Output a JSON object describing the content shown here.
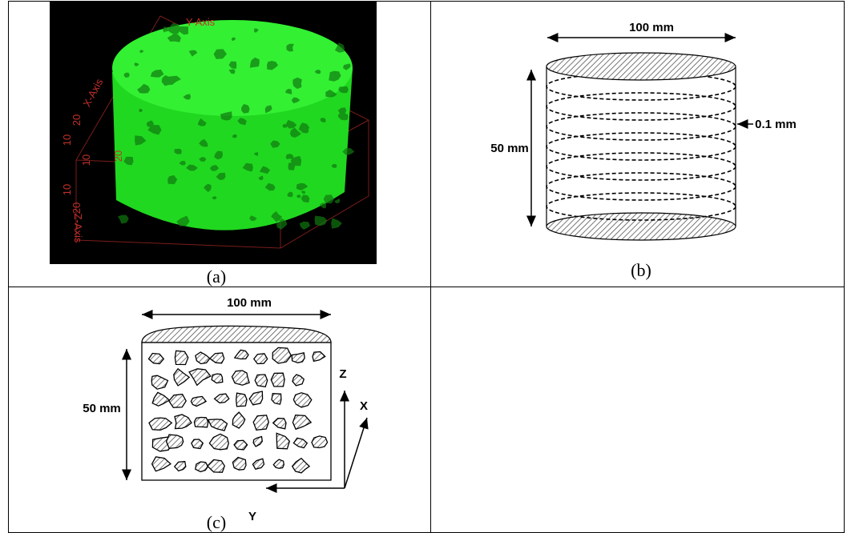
{
  "panels": {
    "a": {
      "caption": "(a)",
      "axis_labels": [
        "Y-Axis",
        "X-Axis",
        "Z-Axis"
      ],
      "tick_labels": [
        "20",
        "10",
        "20",
        "10",
        "10",
        "20"
      ]
    },
    "b": {
      "caption": "(b)",
      "width_label": "100 mm",
      "height_label": "50 mm",
      "slice_label": "0.1 mm"
    },
    "c": {
      "caption": "(c)",
      "width_label": "100 mm",
      "height_label": "50 mm",
      "axis_labels": [
        "Z",
        "X",
        "Y"
      ]
    }
  }
}
